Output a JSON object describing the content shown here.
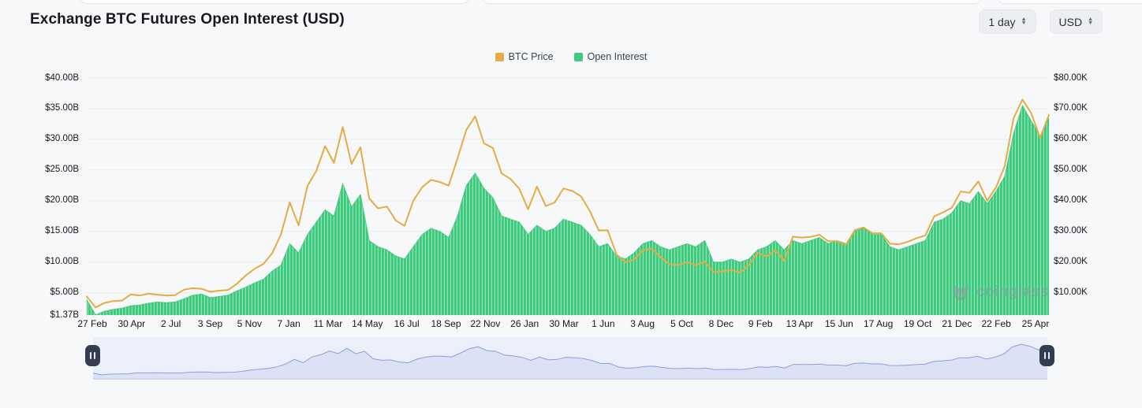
{
  "header": {
    "title": "Exchange BTC Futures Open Interest (USD)",
    "timeframe_select": {
      "value": "1 day"
    },
    "currency_select": {
      "value": "USD"
    }
  },
  "legend": {
    "items": [
      {
        "label": "BTC Price",
        "color": "#e5ac45"
      },
      {
        "label": "Open Interest",
        "color": "#3ecb7d"
      }
    ]
  },
  "watermark": {
    "text": "coinglass"
  },
  "chart_data": {
    "type": "mixed",
    "title": "Exchange BTC Futures Open Interest (USD)",
    "grid": "horizontal",
    "legend_position": "top-center",
    "x_axis": {
      "tick_labels": [
        "27 Feb",
        "30 Apr",
        "2 Jul",
        "3 Sep",
        "5 Nov",
        "7 Jan",
        "11 Mar",
        "14 May",
        "16 Jul",
        "18 Sep",
        "22 Nov",
        "26 Jan",
        "30 Mar",
        "1 Jun",
        "3 Aug",
        "5 Oct",
        "8 Dec",
        "9 Feb",
        "13 Apr",
        "15 Jun",
        "17 Aug",
        "19 Oct",
        "21 Dec",
        "22 Feb",
        "25 Apr"
      ]
    },
    "y_left": {
      "label": "Open Interest",
      "unit": "$B",
      "min": 1.37,
      "max": 40,
      "tick_labels": [
        "$40.00B",
        "$35.00B",
        "$30.00B",
        "$25.00B",
        "$20.00B",
        "$15.00B",
        "$10.00B",
        "$5.00B",
        "$1.37B"
      ],
      "tick_values": [
        40,
        35,
        30,
        25,
        20,
        15,
        10,
        5,
        1.37
      ]
    },
    "y_right": {
      "label": "BTC Price",
      "unit": "$K",
      "min": 2.74,
      "max": 80,
      "tick_labels": [
        "$80.00K",
        "$70.00K",
        "$60.00K",
        "$50.00K",
        "$40.00K",
        "$30.00K",
        "$20.00K",
        "$10.00K"
      ],
      "tick_values": [
        80,
        70,
        60,
        50,
        40,
        30,
        20,
        10
      ]
    },
    "series": [
      {
        "name": "BTC Price",
        "type": "line",
        "axis": "right",
        "color": "#e5ac45",
        "unit": "$K",
        "values": [
          8.8,
          5.2,
          6.7,
          7.3,
          7.5,
          9.5,
          9.1,
          9.7,
          9.4,
          9.1,
          9.2,
          11.0,
          11.5,
          11.3,
          10.3,
          10.7,
          10.9,
          12.9,
          15.6,
          17.8,
          19.4,
          22.8,
          29.0,
          39.5,
          32.0,
          44.8,
          49.7,
          57.8,
          52.3,
          64.0,
          52.0,
          57.4,
          40.7,
          37.5,
          38.1,
          33.6,
          31.8,
          40.0,
          44.4,
          46.8,
          46.1,
          44.9,
          53.8,
          63.1,
          67.5,
          58.7,
          57.2,
          48.9,
          47.1,
          43.9,
          37.2,
          44.6,
          38.3,
          39.4,
          44.0,
          43.2,
          41.4,
          36.6,
          30.3,
          30.4,
          22.6,
          19.9,
          20.8,
          23.8,
          24.4,
          21.6,
          19.3,
          19.1,
          20.0,
          19.0,
          20.2,
          16.7,
          17.0,
          17.4,
          16.6,
          19.0,
          23.0,
          21.8,
          23.9,
          20.4,
          28.3,
          28.0,
          28.2,
          28.9,
          26.8,
          26.8,
          25.6,
          30.4,
          31.3,
          29.4,
          29.4,
          26.0,
          25.8,
          26.6,
          27.8,
          28.7,
          34.9,
          36.2,
          37.7,
          43.0,
          42.6,
          46.3,
          40.0,
          44.3,
          51.3,
          66.9,
          73.0,
          68.5,
          60.5,
          68.0
        ]
      },
      {
        "name": "Open Interest",
        "type": "column",
        "axis": "left",
        "color": "#3ecb7d",
        "unit": "$B",
        "values": [
          3.9,
          1.4,
          2.0,
          2.3,
          2.5,
          2.9,
          3.0,
          3.3,
          3.5,
          3.4,
          3.5,
          4.0,
          4.6,
          4.8,
          4.2,
          4.4,
          4.6,
          5.3,
          5.9,
          6.6,
          7.2,
          8.5,
          9.5,
          13.0,
          11.5,
          14.5,
          16.5,
          18.5,
          17.5,
          22.8,
          19.0,
          21.0,
          13.5,
          12.5,
          12.0,
          11.0,
          10.5,
          12.5,
          14.5,
          15.5,
          15.0,
          14.0,
          17.5,
          22.5,
          24.5,
          22.0,
          20.5,
          17.5,
          17.0,
          16.5,
          14.5,
          16.0,
          15.0,
          15.5,
          17.0,
          16.5,
          16.0,
          14.5,
          12.5,
          13.0,
          11.0,
          10.5,
          11.5,
          13.0,
          13.5,
          12.5,
          12.0,
          12.5,
          13.0,
          12.5,
          13.5,
          10.0,
          10.0,
          10.5,
          10.0,
          10.5,
          12.0,
          12.5,
          13.5,
          12.0,
          13.5,
          13.0,
          13.5,
          14.0,
          13.0,
          13.5,
          13.0,
          15.0,
          15.5,
          14.5,
          14.5,
          12.5,
          12.0,
          12.5,
          13.0,
          13.5,
          16.5,
          17.0,
          18.0,
          20.0,
          19.5,
          21.5,
          19.5,
          21.5,
          24.0,
          31.0,
          35.5,
          33.0,
          30.5,
          33.5
        ]
      }
    ]
  },
  "navigator": {
    "series": "BTC Price (mini)",
    "range": "full",
    "colors": {
      "background": "#ebeffa",
      "area": "#dbe2f6",
      "line": "#8e9ddc",
      "handle": "#343c52"
    }
  }
}
